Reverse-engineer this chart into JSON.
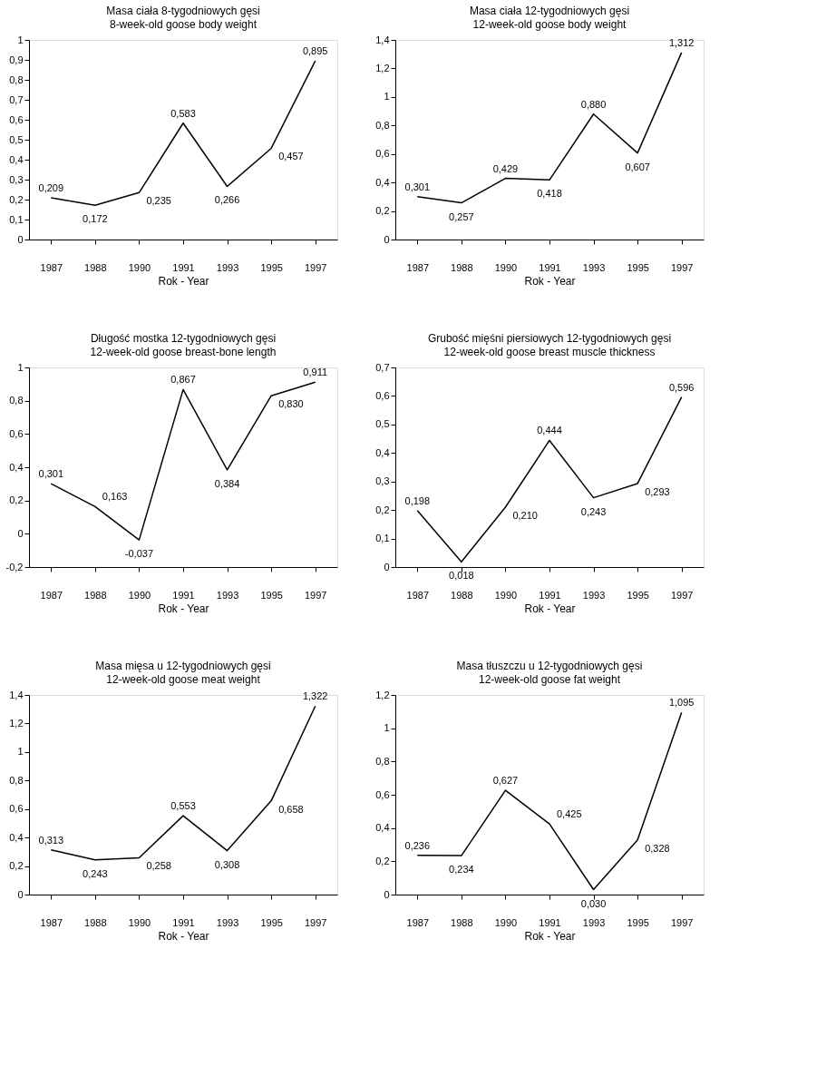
{
  "chart_data": [
    {
      "type": "line",
      "title": "Masa ciała 8-tygodniowych gęsi",
      "subtitle": "8-week-old goose body weight",
      "xlabel": "Rok - Year",
      "categories": [
        "1987",
        "1988",
        "1990",
        "1991",
        "1993",
        "1995",
        "1997"
      ],
      "values": [
        0.209,
        0.172,
        0.235,
        0.583,
        0.266,
        0.457,
        0.895
      ],
      "value_labels": [
        "0,209",
        "0,172",
        "0,235",
        "0,583",
        "0,266",
        "0,457",
        "0,895"
      ],
      "color": "#000000",
      "ylim": [
        0,
        1
      ],
      "yticks": [
        0,
        {
          "value": 0.1,
          "label": "0,1"
        },
        {
          "value": 0.2,
          "label": "0,2"
        },
        {
          "value": 0.3,
          "label": "0,3"
        },
        {
          "value": 0.4,
          "label": "0,4"
        },
        {
          "value": 0.5,
          "label": "0,5"
        },
        {
          "value": 0.6,
          "label": "0,6"
        },
        {
          "value": 0.7,
          "label": "0,7"
        },
        {
          "value": 0.8,
          "label": "0,8"
        },
        {
          "value": 0.9,
          "label": "0,9"
        },
        1
      ]
    },
    {
      "type": "line",
      "title": "Masa ciała 12-tygodniowych gęsi",
      "subtitle": "12-week-old goose body weight",
      "xlabel": "Rok - Year",
      "categories": [
        "1987",
        "1988",
        "1990",
        "1991",
        "1993",
        "1995",
        "1997"
      ],
      "values": [
        0.301,
        0.257,
        0.429,
        0.418,
        0.88,
        0.607,
        1.312
      ],
      "value_labels": [
        "0,301",
        "0,257",
        "0,429",
        "0,418",
        "0,880",
        "0,607",
        "1,312"
      ],
      "color": "#000000",
      "ylim": [
        0,
        1.4
      ],
      "yticks": [
        0,
        {
          "value": 0.2,
          "label": "0,2"
        },
        {
          "value": 0.4,
          "label": "0,4"
        },
        {
          "value": 0.6,
          "label": "0,6"
        },
        {
          "value": 0.8,
          "label": "0,8"
        },
        1,
        {
          "value": 1.2,
          "label": "1,2"
        },
        {
          "value": 1.4,
          "label": "1,4"
        }
      ]
    },
    {
      "type": "line",
      "title": "Długość mostka 12-tygodniowych gęsi",
      "subtitle": "12-week-old goose breast-bone length",
      "xlabel": "Rok - Year",
      "categories": [
        "1987",
        "1988",
        "1990",
        "1991",
        "1993",
        "1995",
        "1997"
      ],
      "values": [
        0.301,
        0.163,
        -0.037,
        0.867,
        0.384,
        0.83,
        0.911
      ],
      "value_labels": [
        "0,301",
        "0,163",
        "-0,037",
        "0,867",
        "0,384",
        "0,830",
        "0,911"
      ],
      "color": "#000000",
      "ylim": [
        -0.2,
        1
      ],
      "yticks": [
        {
          "value": -0.2,
          "label": "-0,2"
        },
        0,
        {
          "value": 0.2,
          "label": "0,2"
        },
        {
          "value": 0.4,
          "label": "0,4"
        },
        {
          "value": 0.6,
          "label": "0,6"
        },
        {
          "value": 0.8,
          "label": "0,8"
        },
        1
      ]
    },
    {
      "type": "line",
      "title": "Grubość mięśni piersiowych 12-tygodniowych gęsi",
      "subtitle": "12-week-old goose breast muscle thickness",
      "xlabel": "Rok - Year",
      "categories": [
        "1987",
        "1988",
        "1990",
        "1991",
        "1993",
        "1995",
        "1997"
      ],
      "values": [
        0.198,
        0.018,
        0.21,
        0.444,
        0.243,
        0.293,
        0.596
      ],
      "value_labels": [
        "0,198",
        "0,018",
        "0,210",
        "0,444",
        "0,243",
        "0,293",
        "0,596"
      ],
      "color": "#000000",
      "ylim": [
        0,
        0.7
      ],
      "yticks": [
        0,
        {
          "value": 0.1,
          "label": "0,1"
        },
        {
          "value": 0.2,
          "label": "0,2"
        },
        {
          "value": 0.3,
          "label": "0,3"
        },
        {
          "value": 0.4,
          "label": "0,4"
        },
        {
          "value": 0.5,
          "label": "0,5"
        },
        {
          "value": 0.6,
          "label": "0,6"
        },
        {
          "value": 0.7,
          "label": "0,7"
        }
      ]
    },
    {
      "type": "line",
      "title": "Masa mięsa u 12-tygodniowych gęsi",
      "subtitle": "12-week-old goose meat weight",
      "xlabel": "Rok - Year",
      "categories": [
        "1987",
        "1988",
        "1990",
        "1991",
        "1993",
        "1995",
        "1997"
      ],
      "values": [
        0.313,
        0.243,
        0.258,
        0.553,
        0.308,
        0.658,
        1.322
      ],
      "value_labels": [
        "0,313",
        "0,243",
        "0,258",
        "0,553",
        "0,308",
        "0,658",
        "1,322"
      ],
      "color": "#000000",
      "ylim": [
        0,
        1.4
      ],
      "yticks": [
        0,
        {
          "value": 0.2,
          "label": "0,2"
        },
        {
          "value": 0.4,
          "label": "0,4"
        },
        {
          "value": 0.6,
          "label": "0,6"
        },
        {
          "value": 0.8,
          "label": "0,8"
        },
        1,
        {
          "value": 1.2,
          "label": "1,2"
        },
        {
          "value": 1.4,
          "label": "1,4"
        }
      ]
    },
    {
      "type": "line",
      "title": "Masa tłuszczu u 12-tygodniowych gęsi",
      "subtitle": "12-week-old goose fat weight",
      "xlabel": "Rok - Year",
      "categories": [
        "1987",
        "1988",
        "1990",
        "1991",
        "1993",
        "1995",
        "1997"
      ],
      "values": [
        0.236,
        0.234,
        0.627,
        0.425,
        0.03,
        0.328,
        1.095
      ],
      "value_labels": [
        "0,236",
        "0,234",
        "0,627",
        "0,425",
        "0,030",
        "0,328",
        "1,095"
      ],
      "color": "#000000",
      "ylim": [
        0,
        1.2
      ],
      "yticks": [
        0,
        {
          "value": 0.2,
          "label": "0,2"
        },
        {
          "value": 0.4,
          "label": "0,4"
        },
        {
          "value": 0.6,
          "label": "0,6"
        },
        {
          "value": 0.8,
          "label": "0,8"
        },
        1,
        {
          "value": 1.2,
          "label": "1,2"
        }
      ]
    }
  ]
}
